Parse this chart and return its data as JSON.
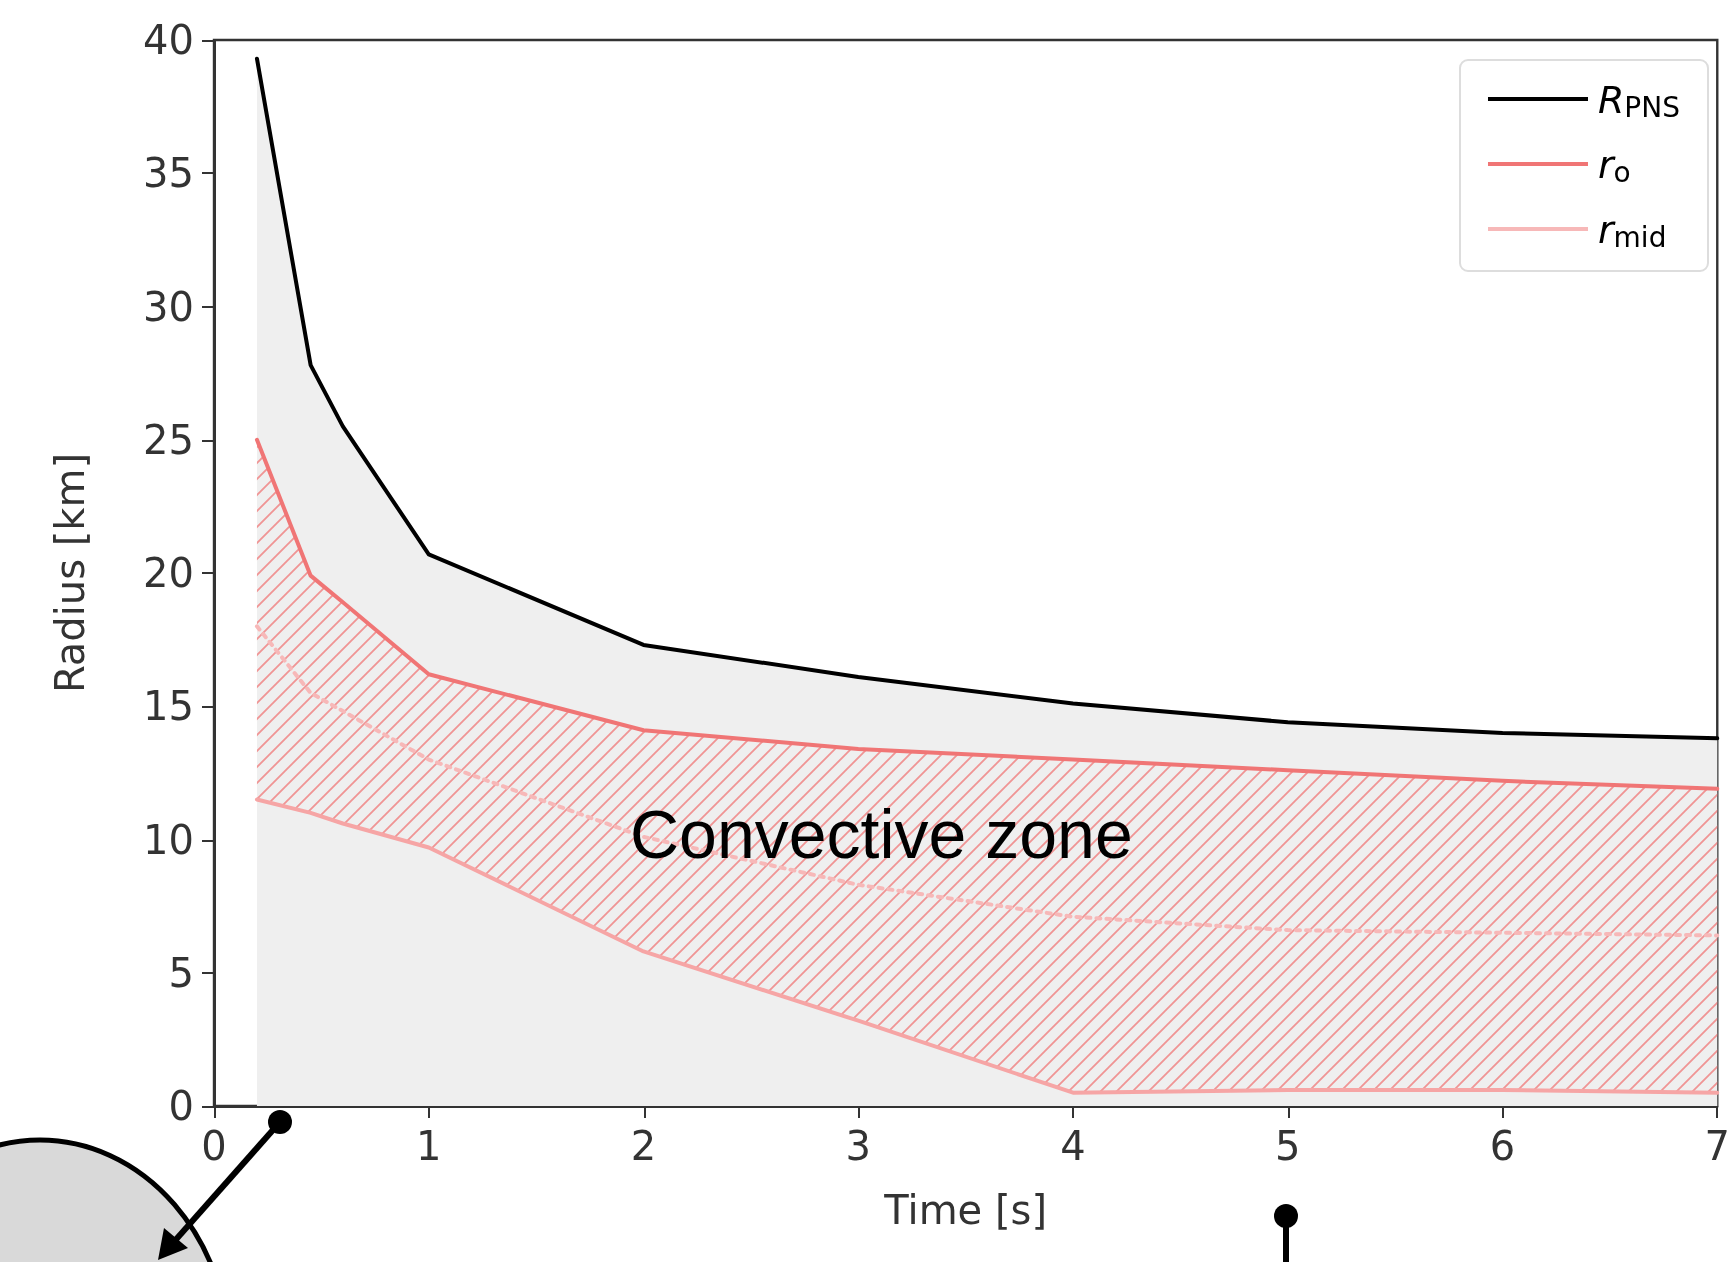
{
  "chart_data": {
    "type": "line",
    "x": [
      0.2,
      0.45,
      0.6,
      1,
      2,
      3,
      4,
      5,
      6,
      7
    ],
    "series": [
      {
        "name": "R$_{PNS}$",
        "type": "area",
        "color": "#000000",
        "values": [
          39.3,
          27.8,
          25.5,
          20.7,
          17.3,
          16.1,
          15.1,
          14.4,
          14.0,
          13.8
        ]
      },
      {
        "name": "r$_{o}$",
        "type": "area",
        "color": "#f07575",
        "values": [
          25.0,
          19.9,
          18.9,
          16.2,
          14.1,
          13.4,
          13.0,
          12.6,
          12.2,
          11.9
        ]
      },
      {
        "name": "r$_{mid}$",
        "color": "#f7b8b8",
        "line_style": "dotted",
        "x": [
          0.2,
          0.45,
          1,
          2,
          3,
          4,
          5,
          6,
          7
        ],
        "values": [
          18.0,
          15.5,
          13.0,
          10.1,
          8.3,
          7.1,
          6.6,
          6.5,
          6.4
        ]
      },
      {
        "color": "#f6a5a5",
        "values": [
          11.5,
          11.0,
          10.6,
          9.7,
          5.8,
          3.2,
          0.5,
          0.6,
          0.6,
          0.5
        ]
      }
    ],
    "xlabel": "Time [s]",
    "ylabel": "Radius [km]",
    "xlim": [
      0,
      7
    ],
    "xticks": [
      0,
      1,
      2,
      3,
      4,
      5,
      6,
      7
    ],
    "ylim": [
      0,
      40
    ],
    "yticks": [
      0,
      5,
      10,
      15,
      20,
      25,
      30,
      35,
      40
    ],
    "annotations": [
      "Convective zone"
    ],
    "grid": false,
    "legend": "top right"
  }
}
